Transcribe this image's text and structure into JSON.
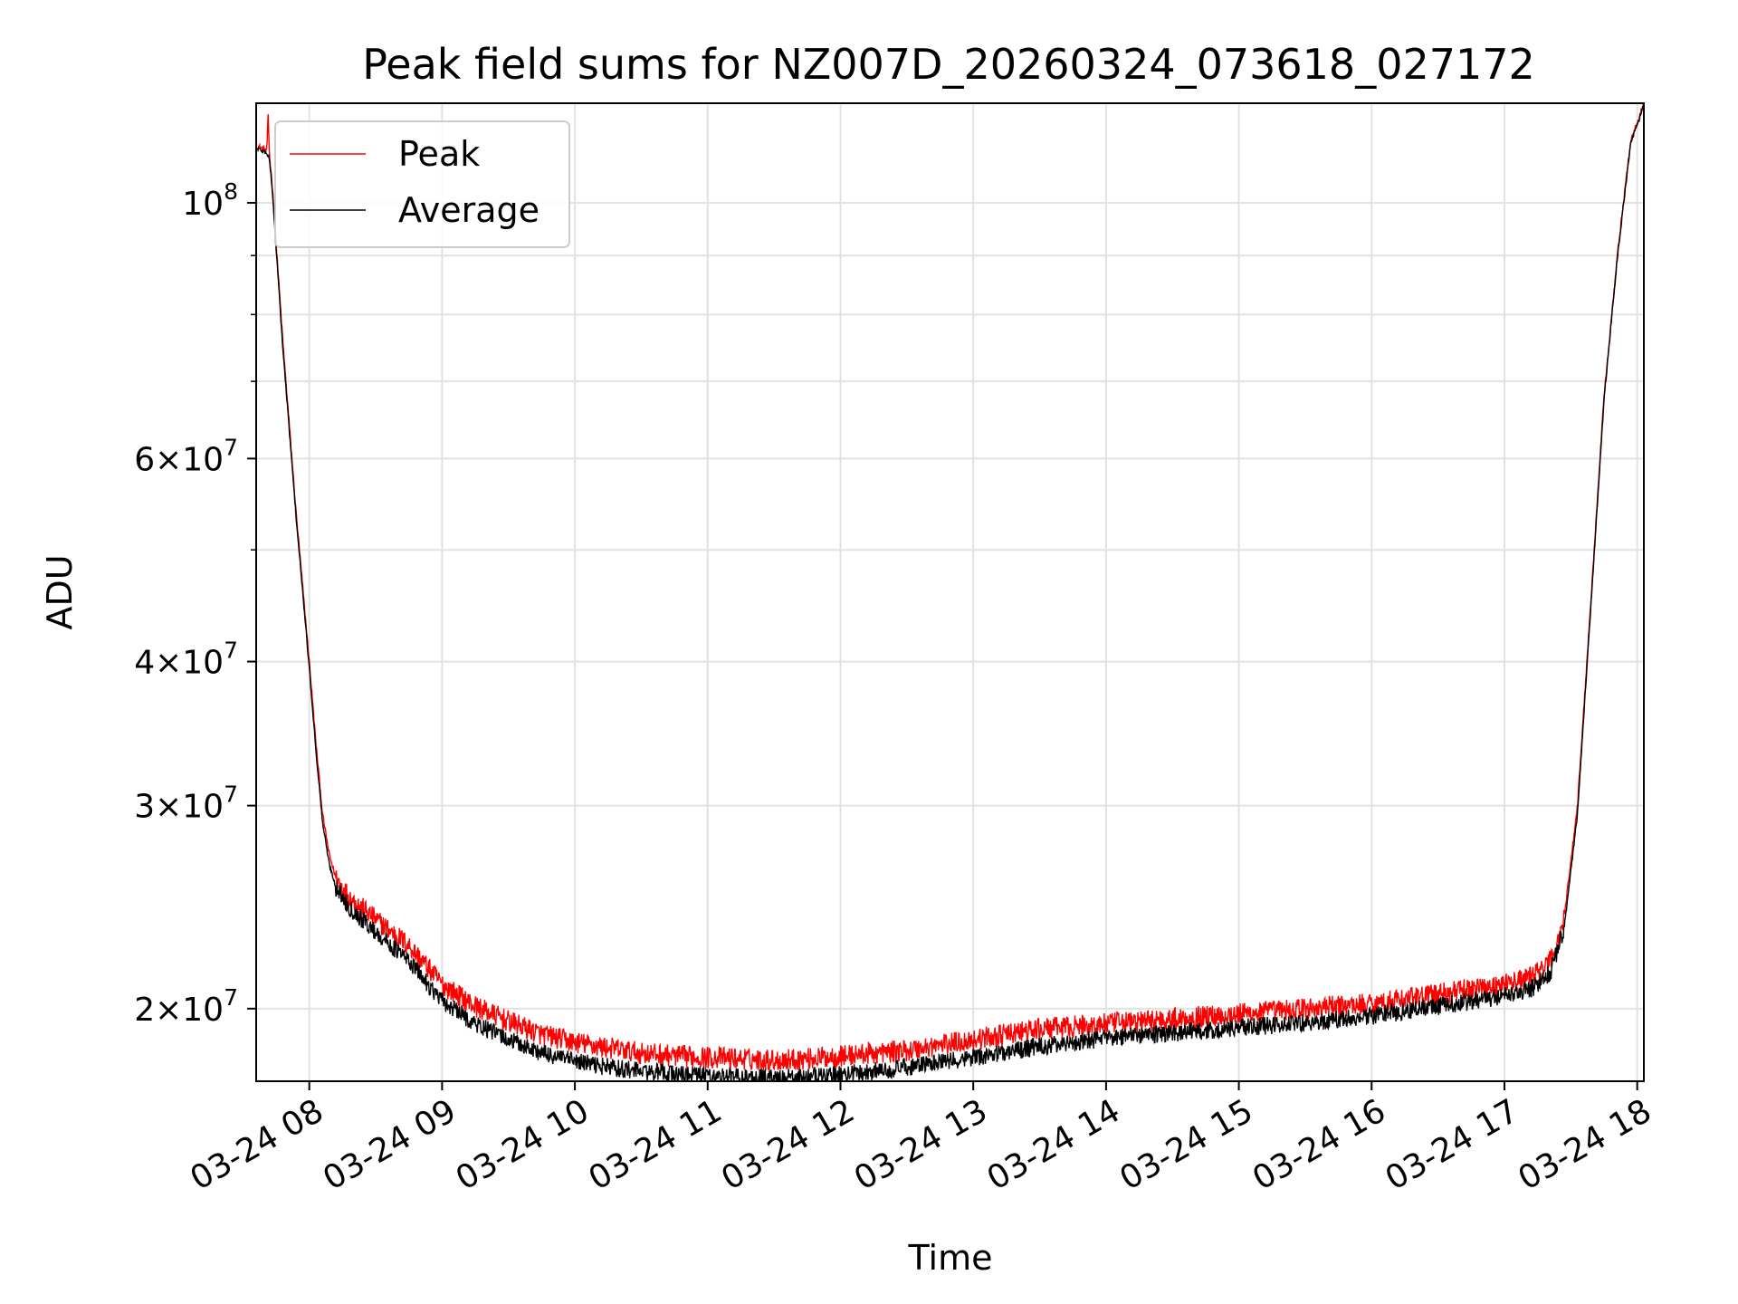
{
  "chart_data": {
    "type": "line",
    "title": "Peak field sums for NZ007D_20260324_073618_027172",
    "xlabel": "Time",
    "ylabel": "ADU",
    "yscale": "log",
    "grid": true,
    "legend_position": "upper-left",
    "x_unit": "hours",
    "xlim": [
      7.6,
      18.05
    ],
    "ylim": [
      17300000,
      122000000
    ],
    "x_ticks": [
      {
        "value": 8,
        "label": "03-24 08"
      },
      {
        "value": 9,
        "label": "03-24 09"
      },
      {
        "value": 10,
        "label": "03-24 10"
      },
      {
        "value": 11,
        "label": "03-24 11"
      },
      {
        "value": 12,
        "label": "03-24 12"
      },
      {
        "value": 13,
        "label": "03-24 13"
      },
      {
        "value": 14,
        "label": "03-24 14"
      },
      {
        "value": 15,
        "label": "03-24 15"
      },
      {
        "value": 16,
        "label": "03-24 16"
      },
      {
        "value": 17,
        "label": "03-24 17"
      },
      {
        "value": 18,
        "label": "03-24 18"
      }
    ],
    "y_major_ticks": [
      {
        "value": 20000000,
        "mantissa": "2",
        "exp": "7"
      },
      {
        "value": 30000000,
        "mantissa": "3",
        "exp": "7"
      },
      {
        "value": 40000000,
        "mantissa": "4",
        "exp": "7"
      },
      {
        "value": 60000000,
        "mantissa": "6",
        "exp": "7"
      },
      {
        "value": 100000000,
        "mantissa": "",
        "exp": "8"
      }
    ],
    "y_minor_ticks": [
      50000000,
      70000000,
      80000000,
      90000000
    ],
    "times_symbol": "×",
    "base_label": "10",
    "series": [
      {
        "name": "Peak",
        "color": "#ff0000",
        "noise_amplitude": 0.022,
        "x": [
          7.61,
          7.68,
          7.69,
          7.7,
          7.72,
          7.8,
          7.9,
          8.0,
          8.05,
          8.1,
          8.15,
          8.2,
          8.3,
          8.5,
          8.75,
          9.0,
          9.25,
          9.5,
          9.75,
          10.0,
          10.25,
          10.5,
          10.75,
          11.0,
          11.25,
          11.5,
          11.75,
          12.0,
          12.25,
          12.5,
          12.75,
          13.0,
          13.25,
          13.5,
          13.75,
          14.0,
          14.5,
          15.0,
          15.5,
          16.0,
          16.5,
          17.0,
          17.2,
          17.35,
          17.45,
          17.55,
          17.65,
          17.75,
          17.85,
          17.95,
          18.05
        ],
        "y": [
          112000000,
          111000000,
          119000000,
          110000000,
          104000000,
          76000000,
          54000000,
          40000000,
          34000000,
          29500000,
          27200000,
          26000000,
          25000000,
          23900000,
          22700000,
          21000000,
          20100000,
          19500000,
          19000000,
          18700000,
          18500000,
          18300000,
          18200000,
          18150000,
          18100000,
          18050000,
          18100000,
          18200000,
          18300000,
          18400000,
          18600000,
          18800000,
          19000000,
          19200000,
          19300000,
          19400000,
          19600000,
          19800000,
          20000000,
          20200000,
          20600000,
          21000000,
          21300000,
          22000000,
          24000000,
          30000000,
          45000000,
          68000000,
          90000000,
          113000000,
          122000000
        ]
      },
      {
        "name": "Average",
        "color": "#000000",
        "noise_amplitude": 0.018,
        "x": [
          7.61,
          7.68,
          7.7,
          7.72,
          7.8,
          7.9,
          8.0,
          8.05,
          8.1,
          8.15,
          8.2,
          8.3,
          8.5,
          8.75,
          9.0,
          9.25,
          9.5,
          9.75,
          10.0,
          10.25,
          10.5,
          10.75,
          11.0,
          11.25,
          11.5,
          11.75,
          12.0,
          12.25,
          12.5,
          12.75,
          13.0,
          13.25,
          13.5,
          13.75,
          14.0,
          14.5,
          15.0,
          15.5,
          16.0,
          16.5,
          17.0,
          17.2,
          17.35,
          17.45,
          17.55,
          17.65,
          17.75,
          17.85,
          17.95,
          18.05
        ],
        "y": [
          111500000,
          110500000,
          109000000,
          103000000,
          75000000,
          53500000,
          39500000,
          33500000,
          29000000,
          26700000,
          25500000,
          24500000,
          23300000,
          22000000,
          20300000,
          19400000,
          18800000,
          18300000,
          18000000,
          17800000,
          17650000,
          17550000,
          17500000,
          17450000,
          17400000,
          17450000,
          17550000,
          17650000,
          17800000,
          17950000,
          18150000,
          18350000,
          18550000,
          18700000,
          18850000,
          19050000,
          19250000,
          19450000,
          19700000,
          20100000,
          20500000,
          20800000,
          21500000,
          23500000,
          29500000,
          44500000,
          67500000,
          89500000,
          112500000,
          121500000
        ]
      }
    ]
  }
}
